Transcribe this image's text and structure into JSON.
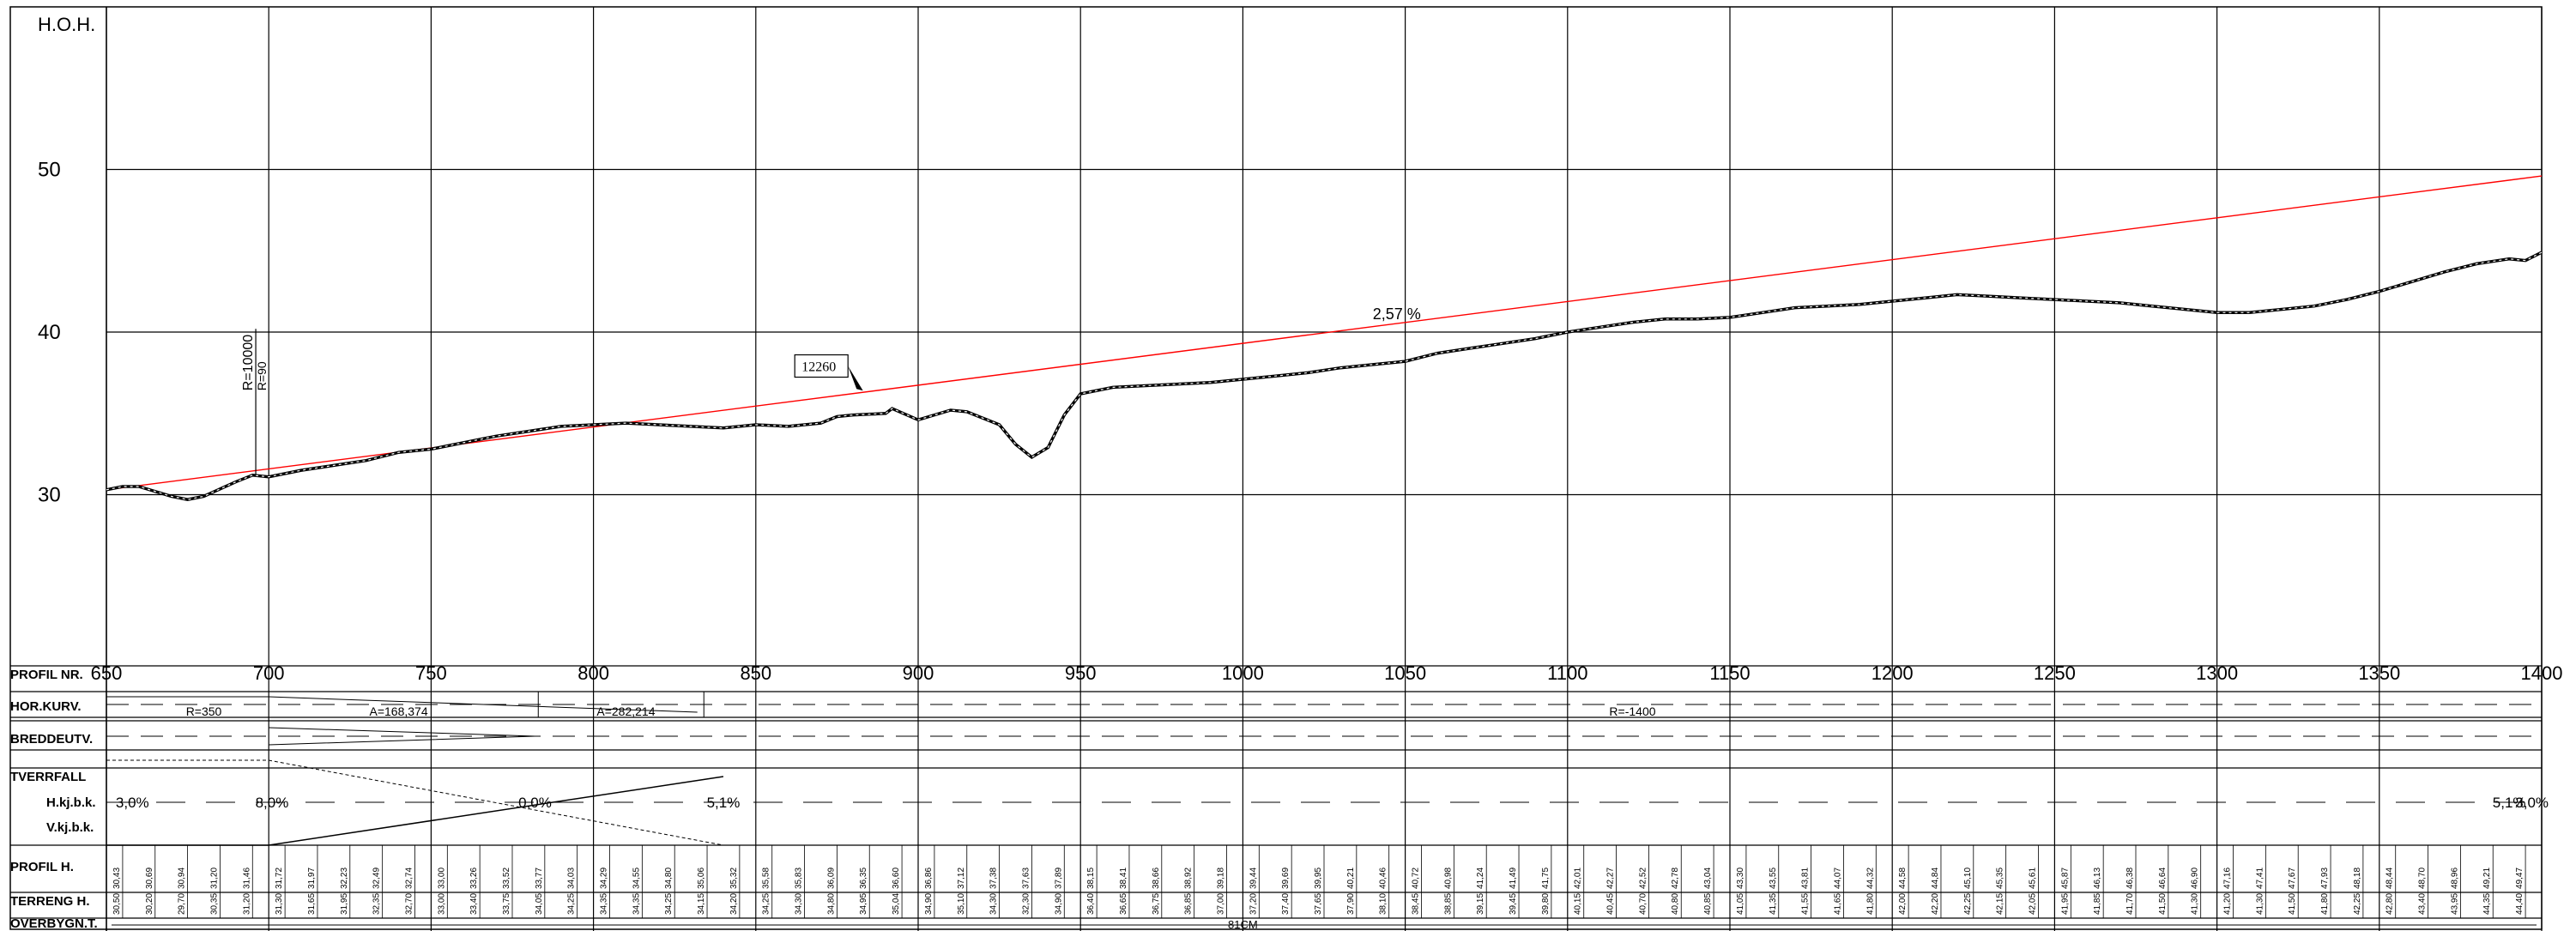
{
  "drawing": {
    "y_axis_label": "H.O.H.",
    "y_ticks": [
      30,
      40,
      50
    ],
    "profile_ticks": [
      650,
      700,
      750,
      800,
      850,
      900,
      950,
      1000,
      1050,
      1100,
      1150,
      1200,
      1250,
      1300,
      1350,
      1400
    ],
    "design_line_color": "#ff0000",
    "line_color": "#000000",
    "grade_label": "2,57 %",
    "vertical_curve": {
      "radius_label": "R=10000",
      "small_label": "R=90",
      "station": 696
    },
    "callout_label": "12260"
  },
  "chart_data": {
    "type": "line",
    "ylabel": "H.O.H.",
    "xlim": [
      650,
      1400
    ],
    "ylim": [
      20,
      60
    ],
    "grid": true,
    "series": [
      {
        "points": [
          [
            650,
            30.3
          ],
          [
            655,
            30.5
          ],
          [
            660,
            30.5
          ],
          [
            670,
            29.9
          ],
          [
            675,
            29.7
          ],
          [
            680,
            29.9
          ],
          [
            690,
            30.8
          ],
          [
            695,
            31.2
          ],
          [
            700,
            31.1
          ],
          [
            710,
            31.5
          ],
          [
            720,
            31.8
          ],
          [
            730,
            32.1
          ],
          [
            740,
            32.6
          ],
          [
            750,
            32.8
          ],
          [
            760,
            33.2
          ],
          [
            770,
            33.6
          ],
          [
            780,
            33.9
          ],
          [
            790,
            34.2
          ],
          [
            800,
            34.3
          ],
          [
            810,
            34.4
          ],
          [
            820,
            34.3
          ],
          [
            830,
            34.2
          ],
          [
            840,
            34.1
          ],
          [
            850,
            34.3
          ],
          [
            860,
            34.2
          ],
          [
            870,
            34.4
          ],
          [
            875,
            34.8
          ],
          [
            880,
            34.9
          ],
          [
            890,
            35.0
          ],
          [
            892,
            35.3
          ],
          [
            900,
            34.6
          ],
          [
            910,
            35.2
          ],
          [
            915,
            35.1
          ],
          [
            920,
            34.7
          ],
          [
            925,
            34.3
          ],
          [
            930,
            33.1
          ],
          [
            935,
            32.3
          ],
          [
            940,
            32.9
          ],
          [
            945,
            34.9
          ],
          [
            950,
            36.2
          ],
          [
            960,
            36.6
          ],
          [
            970,
            36.7
          ],
          [
            980,
            36.8
          ],
          [
            990,
            36.9
          ],
          [
            1000,
            37.1
          ],
          [
            1010,
            37.3
          ],
          [
            1020,
            37.5
          ],
          [
            1030,
            37.8
          ],
          [
            1040,
            38.0
          ],
          [
            1050,
            38.2
          ],
          [
            1060,
            38.7
          ],
          [
            1070,
            39.0
          ],
          [
            1080,
            39.3
          ],
          [
            1090,
            39.6
          ],
          [
            1100,
            40.0
          ],
          [
            1110,
            40.3
          ],
          [
            1120,
            40.6
          ],
          [
            1130,
            40.8
          ],
          [
            1140,
            40.8
          ],
          [
            1150,
            40.9
          ],
          [
            1160,
            41.2
          ],
          [
            1170,
            41.5
          ],
          [
            1180,
            41.6
          ],
          [
            1190,
            41.7
          ],
          [
            1200,
            41.9
          ],
          [
            1210,
            42.1
          ],
          [
            1220,
            42.3
          ],
          [
            1230,
            42.2
          ],
          [
            1240,
            42.1
          ],
          [
            1250,
            42.0
          ],
          [
            1260,
            41.9
          ],
          [
            1270,
            41.8
          ],
          [
            1280,
            41.6
          ],
          [
            1290,
            41.4
          ],
          [
            1300,
            41.2
          ],
          [
            1310,
            41.2
          ],
          [
            1320,
            41.4
          ],
          [
            1330,
            41.6
          ],
          [
            1340,
            42.0
          ],
          [
            1350,
            42.5
          ],
          [
            1360,
            43.1
          ],
          [
            1370,
            43.7
          ],
          [
            1380,
            44.2
          ],
          [
            1390,
            44.5
          ],
          [
            1395,
            44.4
          ],
          [
            1400,
            44.9
          ]
        ]
      },
      {
        "points": [
          [
            650,
            30.3
          ],
          [
            1400,
            49.6
          ]
        ]
      }
    ]
  },
  "bands": {
    "rows": [
      "PROFIL NR.",
      "HOR.KURV.",
      "BREDDEUTV.",
      "TVERRFALL",
      "H.kj.b.k.",
      "V.kj.b.k.",
      "PROFIL H.",
      "TERRENG H.",
      "OVERBYGN.T."
    ],
    "hor_kurv": [
      {
        "label": "R=350",
        "station": 680
      },
      {
        "label": "A=168,374",
        "station": 740
      },
      {
        "label": "A=282,214",
        "station": 810
      },
      {
        "label": "R=-1400",
        "station": 1120
      }
    ],
    "tverrfall": [
      {
        "label": "3,0%",
        "station": 658
      },
      {
        "label": "8,0%",
        "station": 701
      },
      {
        "label": "0,0%",
        "station": 782
      },
      {
        "label": "5,1%",
        "station": 840
      },
      {
        "label": "5,1%",
        "station": 1390
      },
      {
        "label": "3,0%",
        "station": 1397
      }
    ],
    "overbygn_label": "81CM"
  }
}
